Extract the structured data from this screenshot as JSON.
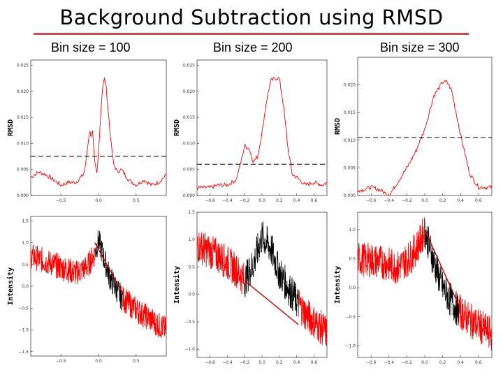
{
  "title": "Background Subtraction using RMSD",
  "colors": {
    "rule": "#c0504d",
    "signal": "#ff0000",
    "fit": "#cc0000",
    "peak": "#000000",
    "cutoff": "#000000"
  },
  "chart_data": [
    {
      "type": "line",
      "id": "rmsd-100",
      "title": "Bin size = 100",
      "ylabel": "RMSD",
      "xlim": [
        -0.9,
        0.9
      ],
      "ylim": [
        0,
        0.026
      ],
      "xticks": [
        -0.5,
        0.0,
        0.5
      ],
      "xtick_labels": [
        "−0.5",
        "0.0",
        "0.5"
      ],
      "yticks": [
        0.0,
        0.005,
        0.01,
        0.015,
        0.02,
        0.025
      ],
      "ytick_labels": [
        "0.000",
        "0.005",
        "0.010",
        "0.015",
        "0.020",
        "0.025"
      ],
      "threshold": 0.0075,
      "series": [
        {
          "name": "RMSD",
          "x": [
            -0.9,
            -0.8,
            -0.7,
            -0.6,
            -0.5,
            -0.4,
            -0.3,
            -0.2,
            -0.17,
            -0.12,
            -0.1,
            -0.08,
            -0.05,
            -0.02,
            0.0,
            0.05,
            0.08,
            0.1,
            0.13,
            0.16,
            0.2,
            0.25,
            0.3,
            0.4,
            0.5,
            0.6,
            0.7,
            0.8,
            0.9
          ],
          "y": [
            0.0035,
            0.0045,
            0.004,
            0.003,
            0.002,
            0.0025,
            0.0025,
            0.004,
            0.006,
            0.0125,
            0.0115,
            0.0125,
            0.006,
            0.004,
            0.0085,
            0.0205,
            0.0225,
            0.021,
            0.016,
            0.011,
            0.006,
            0.0045,
            0.005,
            0.003,
            0.002,
            0.003,
            0.002,
            0.0025,
            0.004
          ]
        }
      ]
    },
    {
      "type": "line",
      "id": "rmsd-200",
      "title": "Bin size = 200",
      "ylabel": "RMSD",
      "xlim": [
        -0.75,
        0.75
      ],
      "ylim": [
        0,
        0.026
      ],
      "xticks": [
        -0.6,
        -0.4,
        -0.2,
        0.0,
        0.2,
        0.4,
        0.6
      ],
      "xtick_labels": [
        "−0.6",
        "−0.4",
        "−0.2",
        "0.0",
        "0.2",
        "0.4",
        "0.6"
      ],
      "yticks": [
        0.0,
        0.005,
        0.01,
        0.015,
        0.02,
        0.025
      ],
      "ytick_labels": [
        "0.000",
        "0.005",
        "0.010",
        "0.015",
        "0.020",
        "0.025"
      ],
      "threshold": 0.006,
      "series": [
        {
          "name": "RMSD",
          "x": [
            -0.75,
            -0.6,
            -0.5,
            -0.4,
            -0.3,
            -0.25,
            -0.2,
            -0.15,
            -0.1,
            -0.05,
            0.0,
            0.05,
            0.1,
            0.15,
            0.2,
            0.25,
            0.3,
            0.35,
            0.4,
            0.5,
            0.6,
            0.7,
            0.75
          ],
          "y": [
            0.0015,
            0.0015,
            0.002,
            0.002,
            0.003,
            0.006,
            0.0095,
            0.009,
            0.0065,
            0.0075,
            0.012,
            0.018,
            0.022,
            0.0225,
            0.0225,
            0.017,
            0.009,
            0.004,
            0.0035,
            0.002,
            0.0025,
            0.002,
            0.0025
          ]
        }
      ]
    },
    {
      "type": "line",
      "id": "rmsd-300",
      "title": "Bin size = 300",
      "ylabel": "RMSD",
      "xlim": [
        -0.75,
        0.75
      ],
      "ylim": [
        0,
        0.025
      ],
      "xticks": [
        -0.6,
        -0.4,
        -0.2,
        0.0,
        0.2,
        0.4,
        0.6
      ],
      "xtick_labels": [
        "−0.6",
        "−0.4",
        "−0.2",
        "0.0",
        "0.2",
        "0.4",
        "0.6"
      ],
      "yticks": [
        0.0,
        0.005,
        0.01,
        0.015,
        0.02
      ],
      "ytick_labels": [
        "0.000",
        "0.005",
        "0.010",
        "0.015",
        "0.020"
      ],
      "threshold": 0.0105,
      "series": [
        {
          "name": "RMSD",
          "x": [
            -0.7,
            -0.6,
            -0.5,
            -0.4,
            -0.3,
            -0.2,
            -0.1,
            0.0,
            0.1,
            0.2,
            0.25,
            0.3,
            0.4,
            0.5,
            0.6,
            0.7
          ],
          "y": [
            0.001,
            0.0015,
            0.001,
            0.0,
            0.0025,
            0.005,
            0.008,
            0.012,
            0.018,
            0.0205,
            0.0205,
            0.019,
            0.011,
            0.004,
            0.0015,
            0.0015
          ]
        }
      ]
    },
    {
      "type": "line",
      "id": "intensity-100",
      "ylabel": "Intensity",
      "xlim": [
        -0.9,
        0.9
      ],
      "ylim": [
        -1.6,
        1.6
      ],
      "xticks": [
        -0.5,
        0.0,
        0.5
      ],
      "xtick_labels": [
        "−0.5",
        "0.0",
        "0.5"
      ],
      "yticks": [
        -1.5,
        -1.0,
        -0.5,
        0.0,
        0.5,
        1.0,
        1.5
      ],
      "ytick_labels": [
        "−1.5",
        "−1.0",
        "−0.5",
        "0.0",
        "0.5",
        "1.0",
        "1.5"
      ],
      "noise": 0.3,
      "series": [
        {
          "name": "data",
          "x": [
            -0.9,
            -0.6,
            -0.3,
            -0.15,
            -0.05,
            0.0,
            0.15,
            0.3,
            0.55,
            0.9
          ],
          "y": [
            0.7,
            0.5,
            0.3,
            0.45,
            0.75,
            1.05,
            0.2,
            -0.25,
            -0.6,
            -1.0
          ]
        },
        {
          "name": "peak",
          "x_range": [
            -0.05,
            0.32
          ]
        },
        {
          "name": "baseline",
          "x": [
            -0.05,
            0.32
          ],
          "y": [
            1.0,
            -0.15
          ]
        }
      ]
    },
    {
      "type": "line",
      "id": "intensity-200",
      "ylabel": "Intensity",
      "xlim": [
        -0.75,
        0.75
      ],
      "ylim": [
        -1.15,
        1.5
      ],
      "xticks": [
        -0.6,
        -0.4,
        -0.2,
        0.0,
        0.2,
        0.4,
        0.6
      ],
      "xtick_labels": [
        "−0.6",
        "−0.4",
        "−0.2",
        "0.0",
        "0.2",
        "0.4",
        "0.6"
      ],
      "yticks": [
        -1.0,
        -0.5,
        0.0,
        0.5,
        1.0,
        1.5
      ],
      "ytick_labels": [
        "−1.0",
        "−0.5",
        "0.0",
        "0.5",
        "1.0",
        "1.5"
      ],
      "noise": 0.32,
      "series": [
        {
          "name": "data",
          "x": [
            -0.75,
            -0.5,
            -0.3,
            -0.2,
            -0.1,
            0.0,
            0.1,
            0.2,
            0.35,
            0.5,
            0.75
          ],
          "y": [
            0.9,
            0.7,
            0.45,
            0.25,
            0.55,
            1.05,
            0.85,
            0.4,
            0.0,
            -0.35,
            -0.7
          ]
        },
        {
          "name": "peak",
          "x_range": [
            -0.2,
            0.42
          ]
        },
        {
          "name": "baseline",
          "x": [
            -0.2,
            0.42
          ],
          "y": [
            0.25,
            -0.55
          ]
        }
      ]
    },
    {
      "type": "line",
      "id": "intensity-300",
      "ylabel": "Intensity",
      "xlim": [
        -0.75,
        0.75
      ],
      "ylim": [
        -1.2,
        1.3
      ],
      "xticks": [
        -0.6,
        -0.4,
        -0.2,
        0.0,
        0.2,
        0.4,
        0.6
      ],
      "xtick_labels": [
        "−0.6",
        "−0.4",
        "−0.2",
        "0.0",
        "0.2",
        "0.4",
        "0.6"
      ],
      "yticks": [
        -1.0,
        -0.5,
        0.0,
        0.5,
        1.0
      ],
      "ytick_labels": [
        "−1.0",
        "−0.5",
        "0.0",
        "0.5",
        "1.0"
      ],
      "noise": 0.3,
      "series": [
        {
          "name": "data",
          "x": [
            -0.75,
            -0.5,
            -0.3,
            -0.15,
            -0.05,
            0.0,
            0.1,
            0.2,
            0.35,
            0.5,
            0.75
          ],
          "y": [
            0.5,
            0.45,
            0.35,
            0.55,
            0.8,
            1.0,
            0.45,
            0.0,
            -0.35,
            -0.55,
            -0.8
          ]
        },
        {
          "name": "peak",
          "x_range": [
            0.0,
            0.38
          ]
        },
        {
          "name": "baseline",
          "x": [
            0.0,
            0.38
          ],
          "y": [
            1.0,
            -0.3
          ]
        }
      ]
    }
  ]
}
